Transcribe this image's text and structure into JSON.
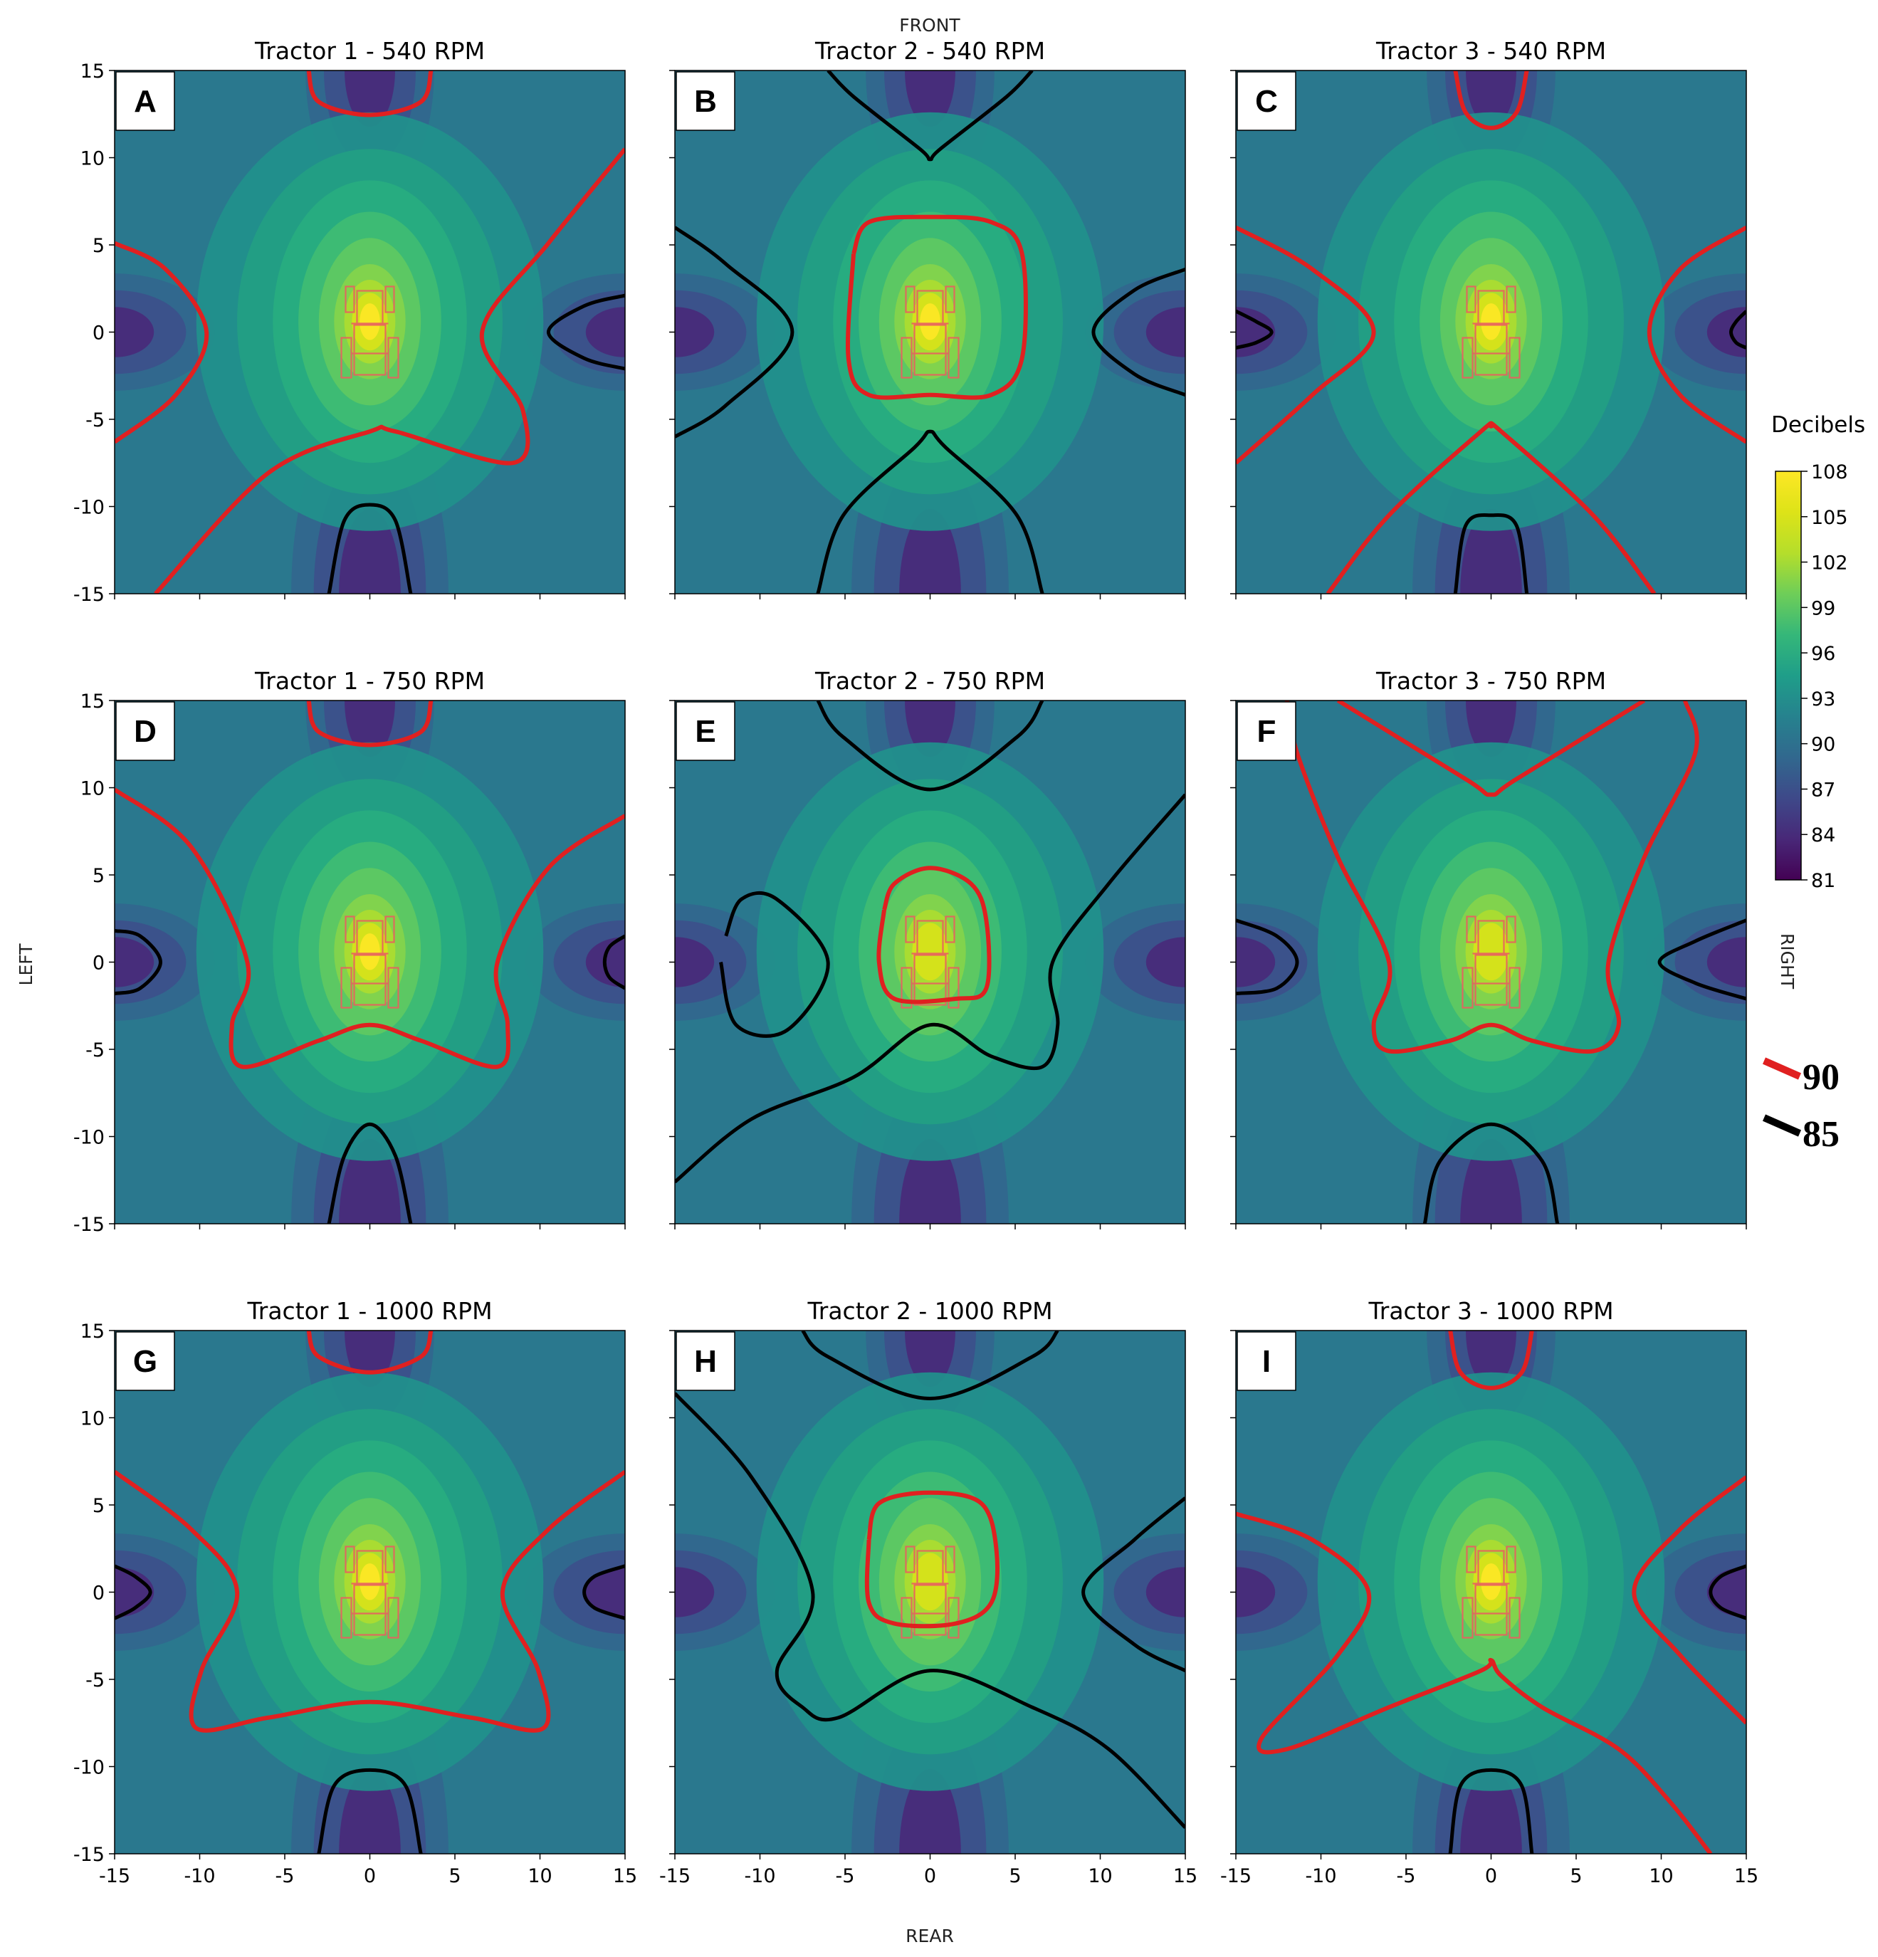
{
  "figure": {
    "front_label": "FRONT",
    "rear_label": "REAR",
    "left_label": "LEFT",
    "right_label": "RIGHT"
  },
  "colorbar": {
    "title": "Decibels",
    "ticks": [
      "108",
      "105",
      "102",
      "99",
      "96",
      "93",
      "90",
      "87",
      "84",
      "81"
    ],
    "min": 81,
    "max": 108,
    "colormap": "viridis"
  },
  "legend": {
    "items": [
      {
        "label": "90",
        "color": "#e02020"
      },
      {
        "label": "85",
        "color": "#000000"
      }
    ]
  },
  "chart_data": [
    {
      "type": "heatmap",
      "panel": "A",
      "title": "Tractor 1 - 540 RPM",
      "xlim": [
        -15,
        15
      ],
      "ylim": [
        -15,
        15
      ],
      "xticks": [
        "-15",
        "-10",
        "-5",
        "0",
        "5",
        "10",
        "15"
      ],
      "yticks": [
        "15",
        "10",
        "5",
        "0",
        "-5",
        "-10",
        "-15"
      ],
      "contour_levels": [
        90,
        85
      ],
      "peak": 108,
      "pattern": "A"
    },
    {
      "type": "heatmap",
      "panel": "B",
      "title": "Tractor 2 - 540 RPM",
      "xlim": [
        -15,
        15
      ],
      "ylim": [
        -15,
        15
      ],
      "xticks": [
        "-15",
        "-10",
        "-5",
        "0",
        "5",
        "10",
        "15"
      ],
      "yticks": [
        "15",
        "10",
        "5",
        "0",
        "-5",
        "-10",
        "-15"
      ],
      "contour_levels": [
        90,
        85
      ],
      "peak": 105,
      "pattern": "B"
    },
    {
      "type": "heatmap",
      "panel": "C",
      "title": "Tractor 3 - 540 RPM",
      "xlim": [
        -15,
        15
      ],
      "ylim": [
        -15,
        15
      ],
      "xticks": [
        "-15",
        "-10",
        "-5",
        "0",
        "5",
        "10",
        "15"
      ],
      "yticks": [
        "15",
        "10",
        "5",
        "0",
        "-5",
        "-10",
        "-15"
      ],
      "contour_levels": [
        90,
        85
      ],
      "peak": 107,
      "pattern": "C"
    },
    {
      "type": "heatmap",
      "panel": "D",
      "title": "Tractor 1 - 750 RPM",
      "xlim": [
        -15,
        15
      ],
      "ylim": [
        -15,
        15
      ],
      "xticks": [
        "-15",
        "-10",
        "-5",
        "0",
        "5",
        "10",
        "15"
      ],
      "yticks": [
        "15",
        "10",
        "5",
        "0",
        "-5",
        "-10",
        "-15"
      ],
      "contour_levels": [
        90,
        85
      ],
      "peak": 108,
      "pattern": "D"
    },
    {
      "type": "heatmap",
      "panel": "E",
      "title": "Tractor 2 - 750 RPM",
      "xlim": [
        -15,
        15
      ],
      "ylim": [
        -15,
        15
      ],
      "xticks": [
        "-15",
        "-10",
        "-5",
        "0",
        "5",
        "10",
        "15"
      ],
      "yticks": [
        "15",
        "10",
        "5",
        "0",
        "-5",
        "-10",
        "-15"
      ],
      "contour_levels": [
        90,
        85
      ],
      "peak": 104,
      "pattern": "E"
    },
    {
      "type": "heatmap",
      "panel": "F",
      "title": "Tractor 3 - 750 RPM",
      "xlim": [
        -15,
        15
      ],
      "ylim": [
        -15,
        15
      ],
      "xticks": [
        "-15",
        "-10",
        "-5",
        "0",
        "5",
        "10",
        "15"
      ],
      "yticks": [
        "15",
        "10",
        "5",
        "0",
        "-5",
        "-10",
        "-15"
      ],
      "contour_levels": [
        90,
        85
      ],
      "peak": 104,
      "pattern": "F"
    },
    {
      "type": "heatmap",
      "panel": "G",
      "title": "Tractor 1 - 1000 RPM",
      "xlim": [
        -15,
        15
      ],
      "ylim": [
        -15,
        15
      ],
      "xticks": [
        "-15",
        "-10",
        "-5",
        "0",
        "5",
        "10",
        "15"
      ],
      "yticks": [
        "15",
        "10",
        "5",
        "0",
        "-5",
        "-10",
        "-15"
      ],
      "contour_levels": [
        90,
        85
      ],
      "peak": 107,
      "pattern": "G"
    },
    {
      "type": "heatmap",
      "panel": "H",
      "title": "Tractor 2 - 1000 RPM",
      "xlim": [
        -15,
        15
      ],
      "ylim": [
        -15,
        15
      ],
      "xticks": [
        "-15",
        "-10",
        "-5",
        "0",
        "5",
        "10",
        "15"
      ],
      "yticks": [
        "15",
        "10",
        "5",
        "0",
        "-5",
        "-10",
        "-15"
      ],
      "contour_levels": [
        90,
        85
      ],
      "peak": 104,
      "pattern": "H"
    },
    {
      "type": "heatmap",
      "panel": "I",
      "title": "Tractor 3 - 1000 RPM",
      "xlim": [
        -15,
        15
      ],
      "ylim": [
        -15,
        15
      ],
      "xticks": [
        "-15",
        "-10",
        "-5",
        "0",
        "5",
        "10",
        "15"
      ],
      "yticks": [
        "15",
        "10",
        "5",
        "0",
        "-5",
        "-10",
        "-15"
      ],
      "contour_levels": [
        90,
        85
      ],
      "peak": 106,
      "pattern": "I"
    }
  ]
}
